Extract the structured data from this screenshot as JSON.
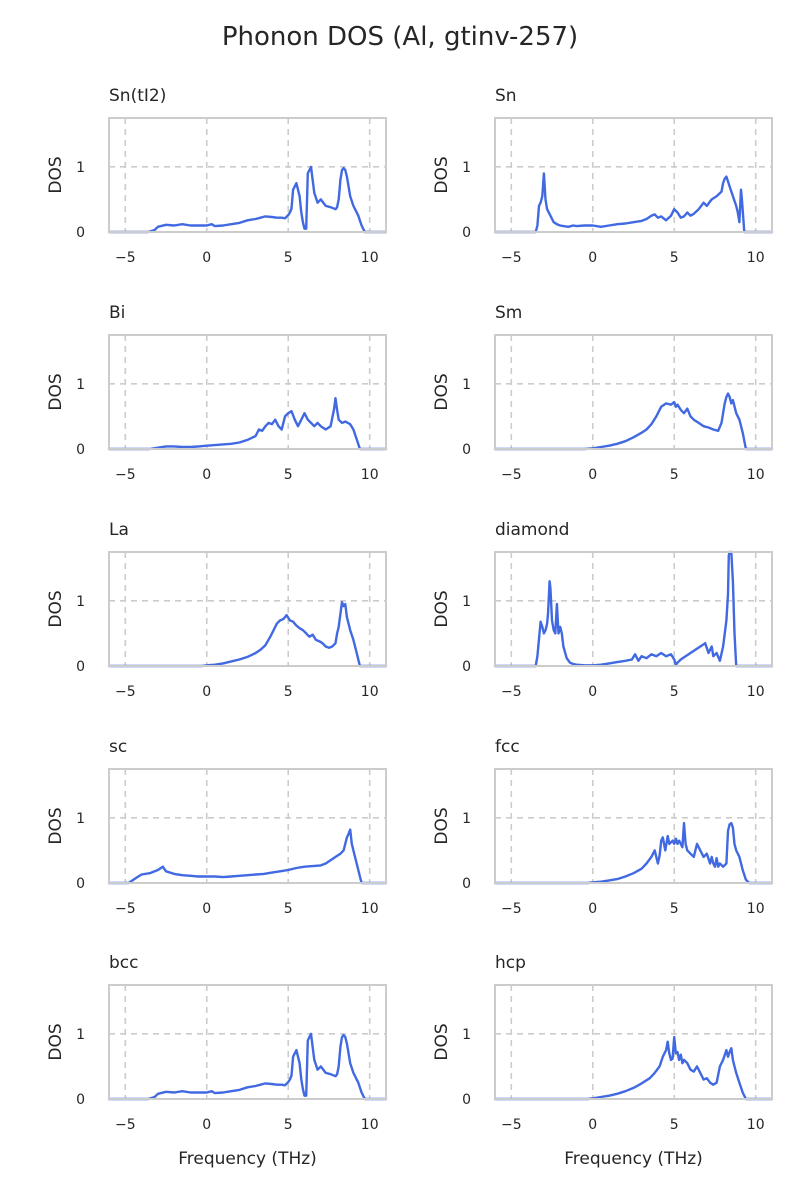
{
  "figure": {
    "title": "Phonon DOS (Al, gtinv-257)"
  },
  "chart_data": [
    {
      "type": "line",
      "title": "Sn(tI2)",
      "xlabel": "",
      "ylabel": "DOS",
      "xlim": [
        -6,
        11
      ],
      "ylim": [
        0,
        1.75
      ],
      "xticks": [
        -5,
        0,
        5,
        10
      ],
      "xtick_labels": [
        "−5",
        "0",
        "5",
        "10"
      ],
      "yticks": [
        0,
        1
      ],
      "ytick_labels": [
        "0",
        "1"
      ],
      "grid": true,
      "x": [
        -6,
        -3.6,
        -3.2,
        -3.0,
        -2.5,
        -2.0,
        -1.5,
        -1.0,
        -0.5,
        0.0,
        0.3,
        0.5,
        1.0,
        1.5,
        2.0,
        2.5,
        3.0,
        3.3,
        3.6,
        4.0,
        4.3,
        4.6,
        4.8,
        5.0,
        5.1,
        5.2,
        5.3,
        5.5,
        5.7,
        5.8,
        5.9,
        6.0,
        6.1,
        6.2,
        6.4,
        6.6,
        6.8,
        7.0,
        7.3,
        7.6,
        7.9,
        8.0,
        8.1,
        8.2,
        8.3,
        8.4,
        8.5,
        8.6,
        8.8,
        9.0,
        9.3,
        9.5,
        9.7,
        10.0,
        10.4,
        11
      ],
      "y": [
        0,
        0,
        0.03,
        0.08,
        0.11,
        0.1,
        0.12,
        0.1,
        0.1,
        0.1,
        0.12,
        0.09,
        0.1,
        0.12,
        0.14,
        0.18,
        0.2,
        0.22,
        0.24,
        0.23,
        0.22,
        0.22,
        0.21,
        0.26,
        0.3,
        0.36,
        0.65,
        0.75,
        0.55,
        0.3,
        0.15,
        0.05,
        0.05,
        0.9,
        1.0,
        0.6,
        0.45,
        0.5,
        0.4,
        0.38,
        0.35,
        0.38,
        0.5,
        0.8,
        0.95,
        0.98,
        0.95,
        0.85,
        0.55,
        0.4,
        0.25,
        0.1,
        0,
        0,
        0,
        0
      ]
    },
    {
      "type": "line",
      "title": "Sn",
      "xlabel": "",
      "ylabel": "DOS",
      "xlim": [
        -6,
        11
      ],
      "ylim": [
        0,
        1.75
      ],
      "xticks": [
        -5,
        0,
        5,
        10
      ],
      "xtick_labels": [
        "−5",
        "0",
        "5",
        "10"
      ],
      "yticks": [
        0,
        1
      ],
      "ytick_labels": [
        "0",
        "1"
      ],
      "grid": true,
      "x": [
        -6,
        -3.5,
        -3.4,
        -3.3,
        -3.2,
        -3.1,
        -3.0,
        -2.9,
        -2.8,
        -2.6,
        -2.4,
        -2.2,
        -2.0,
        -1.8,
        -1.5,
        -1.2,
        -1.0,
        -0.5,
        0.0,
        0.5,
        1.0,
        1.5,
        2.0,
        2.5,
        3.0,
        3.3,
        3.6,
        3.8,
        4.0,
        4.2,
        4.5,
        4.8,
        5.0,
        5.2,
        5.4,
        5.6,
        5.8,
        6.0,
        6.2,
        6.5,
        6.8,
        7.0,
        7.3,
        7.6,
        7.9,
        8.0,
        8.1,
        8.2,
        8.4,
        8.6,
        8.8,
        8.9,
        9.0,
        9.1,
        9.15,
        9.3,
        11
      ],
      "y": [
        0,
        0,
        0.1,
        0.4,
        0.45,
        0.55,
        0.9,
        0.5,
        0.35,
        0.25,
        0.15,
        0.12,
        0.1,
        0.09,
        0.08,
        0.1,
        0.09,
        0.1,
        0.1,
        0.08,
        0.1,
        0.12,
        0.13,
        0.15,
        0.17,
        0.2,
        0.25,
        0.27,
        0.22,
        0.24,
        0.18,
        0.25,
        0.35,
        0.3,
        0.22,
        0.24,
        0.3,
        0.25,
        0.28,
        0.35,
        0.45,
        0.4,
        0.5,
        0.55,
        0.62,
        0.75,
        0.82,
        0.85,
        0.7,
        0.55,
        0.4,
        0.3,
        0.15,
        0.65,
        0.5,
        0,
        0
      ]
    },
    {
      "type": "line",
      "title": "Bi",
      "xlabel": "",
      "ylabel": "DOS",
      "xlim": [
        -6,
        11
      ],
      "ylim": [
        0,
        1.75
      ],
      "xticks": [
        -5,
        0,
        5,
        10
      ],
      "xtick_labels": [
        "−5",
        "0",
        "5",
        "10"
      ],
      "yticks": [
        0,
        1
      ],
      "ytick_labels": [
        "0",
        "1"
      ],
      "grid": true,
      "x": [
        -6,
        -4.0,
        -3.5,
        -3.0,
        -2.5,
        -2.0,
        -1.5,
        -1.0,
        -0.5,
        0.0,
        0.5,
        1.0,
        1.5,
        2.0,
        2.5,
        3.0,
        3.2,
        3.4,
        3.6,
        3.8,
        4.0,
        4.2,
        4.4,
        4.6,
        4.8,
        5.0,
        5.2,
        5.4,
        5.6,
        5.8,
        6.0,
        6.2,
        6.4,
        6.6,
        6.8,
        7.0,
        7.3,
        7.6,
        7.8,
        7.9,
        8.0,
        8.1,
        8.3,
        8.5,
        8.8,
        9.0,
        9.2,
        9.4,
        9.6,
        10.0,
        11
      ],
      "y": [
        0,
        0,
        0,
        0.02,
        0.04,
        0.04,
        0.03,
        0.03,
        0.04,
        0.05,
        0.06,
        0.07,
        0.08,
        0.1,
        0.14,
        0.2,
        0.3,
        0.28,
        0.35,
        0.4,
        0.38,
        0.45,
        0.35,
        0.3,
        0.5,
        0.55,
        0.58,
        0.45,
        0.35,
        0.45,
        0.55,
        0.45,
        0.4,
        0.35,
        0.4,
        0.35,
        0.3,
        0.35,
        0.6,
        0.78,
        0.6,
        0.45,
        0.4,
        0.42,
        0.38,
        0.3,
        0.15,
        0,
        0,
        0,
        0
      ]
    },
    {
      "type": "line",
      "title": "Sm",
      "xlabel": "",
      "ylabel": "DOS",
      "xlim": [
        -6,
        11
      ],
      "ylim": [
        0,
        1.75
      ],
      "xticks": [
        -5,
        0,
        5,
        10
      ],
      "xtick_labels": [
        "−5",
        "0",
        "5",
        "10"
      ],
      "yticks": [
        0,
        1
      ],
      "ytick_labels": [
        "0",
        "1"
      ],
      "grid": true,
      "x": [
        -6,
        -0.5,
        0.0,
        0.5,
        1.0,
        1.5,
        2.0,
        2.5,
        3.0,
        3.3,
        3.6,
        3.9,
        4.2,
        4.5,
        4.8,
        5.0,
        5.1,
        5.2,
        5.4,
        5.6,
        5.8,
        6.0,
        6.2,
        6.5,
        6.8,
        7.1,
        7.4,
        7.7,
        7.9,
        8.0,
        8.1,
        8.2,
        8.3,
        8.4,
        8.5,
        8.6,
        8.8,
        9.0,
        9.2,
        9.4,
        9.6,
        10.0,
        11
      ],
      "y": [
        0,
        0,
        0.01,
        0.03,
        0.05,
        0.08,
        0.12,
        0.18,
        0.25,
        0.3,
        0.38,
        0.5,
        0.65,
        0.7,
        0.68,
        0.72,
        0.65,
        0.68,
        0.6,
        0.55,
        0.62,
        0.5,
        0.45,
        0.4,
        0.35,
        0.33,
        0.3,
        0.28,
        0.4,
        0.55,
        0.7,
        0.8,
        0.85,
        0.8,
        0.7,
        0.75,
        0.55,
        0.45,
        0.25,
        0,
        0,
        0,
        0
      ]
    },
    {
      "type": "line",
      "title": "La",
      "xlabel": "",
      "ylabel": "DOS",
      "xlim": [
        -6,
        11
      ],
      "ylim": [
        0,
        1.75
      ],
      "xticks": [
        -5,
        0,
        5,
        10
      ],
      "xtick_labels": [
        "−5",
        "0",
        "5",
        "10"
      ],
      "yticks": [
        0,
        1
      ],
      "ytick_labels": [
        "0",
        "1"
      ],
      "grid": true,
      "x": [
        -6,
        -0.3,
        0.0,
        0.5,
        1.0,
        1.5,
        2.0,
        2.5,
        3.0,
        3.3,
        3.6,
        3.9,
        4.1,
        4.3,
        4.5,
        4.7,
        4.9,
        5.1,
        5.3,
        5.5,
        5.7,
        5.9,
        6.1,
        6.3,
        6.5,
        6.7,
        6.9,
        7.1,
        7.3,
        7.5,
        7.7,
        7.9,
        8.0,
        8.1,
        8.2,
        8.3,
        8.4,
        8.5,
        8.6,
        8.8,
        9.0,
        9.2,
        9.4,
        9.6,
        10.0,
        11
      ],
      "y": [
        0,
        0,
        0.01,
        0.02,
        0.04,
        0.07,
        0.1,
        0.14,
        0.2,
        0.25,
        0.32,
        0.45,
        0.55,
        0.65,
        0.7,
        0.72,
        0.78,
        0.7,
        0.68,
        0.62,
        0.58,
        0.55,
        0.5,
        0.45,
        0.48,
        0.4,
        0.38,
        0.35,
        0.3,
        0.28,
        0.3,
        0.35,
        0.5,
        0.6,
        0.8,
        0.98,
        0.92,
        0.95,
        0.75,
        0.55,
        0.4,
        0.2,
        0,
        0,
        0,
        0
      ]
    },
    {
      "type": "line",
      "title": "diamond",
      "xlabel": "",
      "ylabel": "DOS",
      "xlim": [
        -6,
        11
      ],
      "ylim": [
        0,
        1.75
      ],
      "xticks": [
        -5,
        0,
        5,
        10
      ],
      "xtick_labels": [
        "−5",
        "0",
        "5",
        "10"
      ],
      "yticks": [
        0,
        1
      ],
      "ytick_labels": [
        "0",
        "1"
      ],
      "grid": true,
      "x": [
        -6,
        -3.5,
        -3.4,
        -3.2,
        -3.1,
        -3.0,
        -2.9,
        -2.8,
        -2.75,
        -2.65,
        -2.6,
        -2.5,
        -2.4,
        -2.3,
        -2.2,
        -2.1,
        -2.0,
        -1.9,
        -1.8,
        -1.6,
        -1.4,
        -1.2,
        -1.0,
        -0.5,
        0.0,
        0.5,
        1.0,
        1.5,
        2.0,
        2.4,
        2.6,
        2.8,
        3.0,
        3.3,
        3.6,
        3.9,
        4.2,
        4.5,
        4.8,
        5.0,
        5.1,
        5.2,
        5.4,
        5.7,
        6.0,
        6.3,
        6.6,
        6.9,
        7.1,
        7.3,
        7.4,
        7.6,
        7.8,
        8.0,
        8.2,
        8.3,
        8.35,
        8.4,
        8.5,
        8.6,
        8.7,
        8.8,
        9.0,
        11
      ],
      "y": [
        0,
        0,
        0.15,
        0.68,
        0.6,
        0.5,
        0.55,
        0.65,
        0.8,
        1.3,
        1.2,
        0.7,
        0.55,
        0.5,
        0.95,
        0.5,
        0.6,
        0.5,
        0.3,
        0.12,
        0.05,
        0.03,
        0.02,
        0.01,
        0.01,
        0.02,
        0.04,
        0.06,
        0.08,
        0.1,
        0.18,
        0.08,
        0.15,
        0.12,
        0.18,
        0.15,
        0.2,
        0.15,
        0.18,
        0.1,
        0.02,
        0.05,
        0.1,
        0.15,
        0.2,
        0.25,
        0.3,
        0.35,
        0.2,
        0.3,
        0.15,
        0.2,
        0.08,
        0.3,
        0.7,
        1.1,
        1.7,
        1.75,
        1.75,
        1.3,
        0.5,
        0,
        0,
        0
      ]
    },
    {
      "type": "line",
      "title": "sc",
      "xlabel": "",
      "ylabel": "DOS",
      "xlim": [
        -6,
        11
      ],
      "ylim": [
        0,
        1.75
      ],
      "xticks": [
        -5,
        0,
        5,
        10
      ],
      "xtick_labels": [
        "−5",
        "0",
        "5",
        "10"
      ],
      "yticks": [
        0,
        1
      ],
      "ytick_labels": [
        "0",
        "1"
      ],
      "grid": true,
      "x": [
        -6,
        -4.8,
        -4.5,
        -4.2,
        -4.0,
        -3.5,
        -3.0,
        -2.7,
        -2.5,
        -2.0,
        -1.5,
        -1.0,
        -0.5,
        0.0,
        0.5,
        1.0,
        1.5,
        2.0,
        2.5,
        3.0,
        3.5,
        4.0,
        4.5,
        5.0,
        5.5,
        6.0,
        6.5,
        7.0,
        7.3,
        7.6,
        7.9,
        8.2,
        8.4,
        8.6,
        8.7,
        8.8,
        8.9,
        9.0,
        9.1,
        9.2,
        9.3,
        9.4,
        9.5,
        10.5,
        11
      ],
      "y": [
        0,
        0,
        0.05,
        0.1,
        0.13,
        0.15,
        0.2,
        0.25,
        0.18,
        0.14,
        0.12,
        0.11,
        0.1,
        0.1,
        0.1,
        0.09,
        0.1,
        0.11,
        0.12,
        0.13,
        0.14,
        0.16,
        0.18,
        0.2,
        0.23,
        0.25,
        0.26,
        0.27,
        0.3,
        0.35,
        0.4,
        0.45,
        0.5,
        0.7,
        0.75,
        0.82,
        0.6,
        0.5,
        0.4,
        0.3,
        0.2,
        0.1,
        0,
        0,
        0
      ]
    },
    {
      "type": "line",
      "title": "fcc",
      "xlabel": "",
      "ylabel": "DOS",
      "xlim": [
        -6,
        11
      ],
      "ylim": [
        0,
        1.75
      ],
      "xticks": [
        -5,
        0,
        5,
        10
      ],
      "xtick_labels": [
        "−5",
        "0",
        "5",
        "10"
      ],
      "yticks": [
        0,
        1
      ],
      "ytick_labels": [
        "0",
        "1"
      ],
      "grid": true,
      "x": [
        -6,
        -0.3,
        0.0,
        0.5,
        1.0,
        1.5,
        2.0,
        2.5,
        3.0,
        3.3,
        3.6,
        3.8,
        4.0,
        4.1,
        4.2,
        4.3,
        4.45,
        4.6,
        4.7,
        4.9,
        5.0,
        5.1,
        5.2,
        5.3,
        5.4,
        5.5,
        5.6,
        5.7,
        5.8,
        6.0,
        6.2,
        6.4,
        6.6,
        6.8,
        7.0,
        7.2,
        7.3,
        7.4,
        7.5,
        7.6,
        7.7,
        7.8,
        8.0,
        8.2,
        8.3,
        8.4,
        8.5,
        8.6,
        8.7,
        8.8,
        9.0,
        9.2,
        9.4,
        9.6,
        10.0,
        11
      ],
      "y": [
        0,
        0,
        0.01,
        0.02,
        0.04,
        0.06,
        0.1,
        0.15,
        0.22,
        0.3,
        0.4,
        0.5,
        0.3,
        0.42,
        0.65,
        0.7,
        0.5,
        0.72,
        0.6,
        0.65,
        0.6,
        0.68,
        0.6,
        0.65,
        0.6,
        0.55,
        0.92,
        0.6,
        0.5,
        0.45,
        0.4,
        0.6,
        0.5,
        0.4,
        0.45,
        0.3,
        0.4,
        0.3,
        0.25,
        0.38,
        0.25,
        0.3,
        0.25,
        0.3,
        0.8,
        0.9,
        0.92,
        0.85,
        0.6,
        0.5,
        0.4,
        0.2,
        0.05,
        0,
        0,
        0
      ]
    },
    {
      "type": "line",
      "title": "bcc",
      "xlabel": "Frequency (THz)",
      "ylabel": "DOS",
      "xlim": [
        -6,
        11
      ],
      "ylim": [
        0,
        1.75
      ],
      "xticks": [
        -5,
        0,
        5,
        10
      ],
      "xtick_labels": [
        "−5",
        "0",
        "5",
        "10"
      ],
      "yticks": [
        0,
        1
      ],
      "ytick_labels": [
        "0",
        "1"
      ],
      "grid": true,
      "x": [
        -6,
        -3.6,
        -3.2,
        -3.0,
        -2.5,
        -2.0,
        -1.5,
        -1.0,
        -0.5,
        0.0,
        0.3,
        0.5,
        1.0,
        1.5,
        2.0,
        2.5,
        3.0,
        3.3,
        3.6,
        4.0,
        4.3,
        4.6,
        4.8,
        5.0,
        5.1,
        5.2,
        5.3,
        5.5,
        5.7,
        5.8,
        5.9,
        6.0,
        6.1,
        6.2,
        6.4,
        6.6,
        6.8,
        7.0,
        7.3,
        7.6,
        7.9,
        8.0,
        8.1,
        8.2,
        8.3,
        8.4,
        8.5,
        8.6,
        8.8,
        9.0,
        9.3,
        9.5,
        9.7,
        10.0,
        10.4,
        11
      ],
      "y": [
        0,
        0,
        0.03,
        0.08,
        0.11,
        0.1,
        0.12,
        0.1,
        0.1,
        0.1,
        0.12,
        0.09,
        0.1,
        0.12,
        0.14,
        0.18,
        0.2,
        0.22,
        0.24,
        0.23,
        0.22,
        0.22,
        0.21,
        0.26,
        0.3,
        0.36,
        0.65,
        0.75,
        0.55,
        0.3,
        0.15,
        0.05,
        0.05,
        0.9,
        1.0,
        0.6,
        0.45,
        0.5,
        0.4,
        0.38,
        0.35,
        0.38,
        0.5,
        0.8,
        0.95,
        0.98,
        0.95,
        0.85,
        0.55,
        0.4,
        0.25,
        0.1,
        0,
        0,
        0,
        0
      ]
    },
    {
      "type": "line",
      "title": "hcp",
      "xlabel": "Frequency (THz)",
      "ylabel": "DOS",
      "xlim": [
        -6,
        11
      ],
      "ylim": [
        0,
        1.75
      ],
      "xticks": [
        -5,
        0,
        5,
        10
      ],
      "xtick_labels": [
        "−5",
        "0",
        "5",
        "10"
      ],
      "yticks": [
        0,
        1
      ],
      "ytick_labels": [
        "0",
        "1"
      ],
      "grid": true,
      "x": [
        -6,
        -0.3,
        0.0,
        0.5,
        1.0,
        1.5,
        2.0,
        2.5,
        3.0,
        3.5,
        3.8,
        4.1,
        4.3,
        4.5,
        4.6,
        4.7,
        4.8,
        4.9,
        5.0,
        5.1,
        5.2,
        5.3,
        5.4,
        5.5,
        5.6,
        5.8,
        6.0,
        6.2,
        6.4,
        6.6,
        6.8,
        7.0,
        7.2,
        7.4,
        7.6,
        7.8,
        8.0,
        8.2,
        8.3,
        8.4,
        8.5,
        8.6,
        8.7,
        8.8,
        9.0,
        9.2,
        9.4,
        10.0,
        11
      ],
      "y": [
        0,
        0,
        0.01,
        0.03,
        0.05,
        0.08,
        0.12,
        0.17,
        0.24,
        0.32,
        0.4,
        0.5,
        0.65,
        0.75,
        0.88,
        0.7,
        0.6,
        0.62,
        0.95,
        0.7,
        0.72,
        0.6,
        0.68,
        0.55,
        0.6,
        0.55,
        0.45,
        0.42,
        0.5,
        0.4,
        0.3,
        0.32,
        0.25,
        0.22,
        0.25,
        0.5,
        0.6,
        0.75,
        0.65,
        0.72,
        0.78,
        0.6,
        0.5,
        0.4,
        0.25,
        0.1,
        0,
        0,
        0
      ]
    }
  ]
}
